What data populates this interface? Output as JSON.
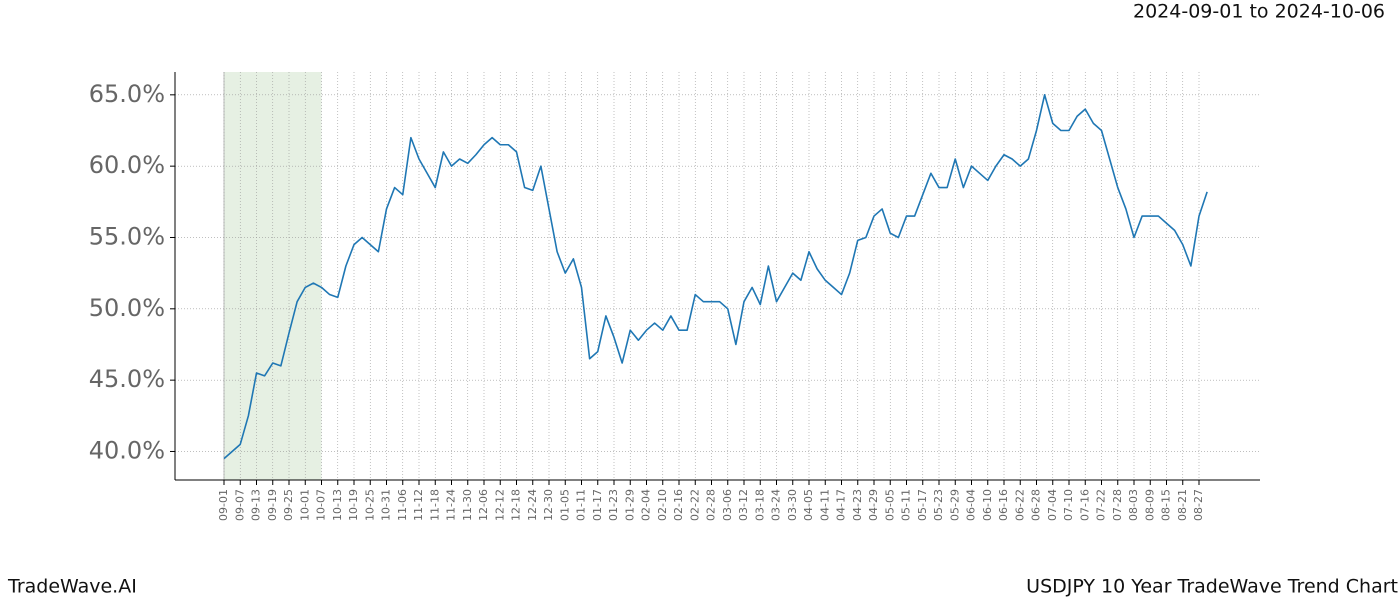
{
  "chart_data": {
    "type": "line",
    "date_range": "2024-09-01 to 2024-10-06",
    "brand": "TradeWave.AI",
    "title": "USDJPY 10 Year TradeWave Trend Chart",
    "x": [
      "09-01",
      "09-04",
      "09-07",
      "09-10",
      "09-13",
      "09-16",
      "09-19",
      "09-22",
      "09-25",
      "09-28",
      "10-01",
      "10-04",
      "10-07",
      "10-10",
      "10-13",
      "10-16",
      "10-19",
      "10-22",
      "10-25",
      "10-28",
      "10-31",
      "11-03",
      "11-06",
      "11-09",
      "11-12",
      "11-15",
      "11-18",
      "11-21",
      "11-24",
      "11-27",
      "11-30",
      "12-03",
      "12-06",
      "12-09",
      "12-12",
      "12-15",
      "12-18",
      "12-21",
      "12-24",
      "12-27",
      "12-30",
      "01-02",
      "01-05",
      "01-08",
      "01-11",
      "01-14",
      "01-17",
      "01-20",
      "01-23",
      "01-26",
      "01-29",
      "02-01",
      "02-04",
      "02-07",
      "02-10",
      "02-13",
      "02-16",
      "02-19",
      "02-22",
      "02-25",
      "02-28",
      "03-03",
      "03-06",
      "03-09",
      "03-12",
      "03-15",
      "03-18",
      "03-21",
      "03-24",
      "03-27",
      "03-30",
      "04-02",
      "04-05",
      "04-08",
      "04-11",
      "04-14",
      "04-17",
      "04-20",
      "04-23",
      "04-26",
      "04-29",
      "05-02",
      "05-05",
      "05-08",
      "05-11",
      "05-14",
      "05-17",
      "05-20",
      "05-23",
      "05-26",
      "05-29",
      "06-01",
      "06-04",
      "06-07",
      "06-10",
      "06-13",
      "06-16",
      "06-19",
      "06-22",
      "06-25",
      "06-28",
      "07-01",
      "07-04",
      "07-07",
      "07-10",
      "07-13",
      "07-16",
      "07-19",
      "07-22",
      "07-25",
      "07-28",
      "07-31",
      "08-03",
      "08-06",
      "08-09",
      "08-12",
      "08-15",
      "08-18",
      "08-21",
      "08-24",
      "08-27",
      "08-30"
    ],
    "values": [
      39.5,
      40.0,
      40.5,
      42.5,
      45.5,
      45.3,
      46.2,
      46.0,
      48.3,
      50.5,
      51.5,
      51.8,
      51.5,
      51.0,
      50.8,
      53.0,
      54.5,
      55.0,
      54.5,
      54.0,
      57.0,
      58.5,
      58.0,
      62.0,
      60.5,
      59.5,
      58.5,
      61.0,
      60.0,
      60.5,
      60.2,
      60.8,
      61.5,
      62.0,
      61.5,
      61.5,
      61.0,
      58.5,
      58.3,
      60.0,
      57.0,
      54.0,
      52.5,
      53.5,
      51.5,
      46.5,
      47.0,
      49.5,
      48.0,
      46.2,
      48.5,
      47.8,
      48.5,
      49.0,
      48.5,
      49.5,
      48.5,
      48.5,
      51.0,
      50.5,
      50.5,
      50.5,
      50.0,
      47.5,
      50.5,
      51.5,
      50.3,
      53.0,
      50.5,
      51.5,
      52.5,
      52.0,
      54.0,
      52.8,
      52.0,
      51.5,
      51.0,
      52.5,
      54.8,
      55.0,
      56.5,
      57.0,
      55.3,
      55.0,
      56.5,
      56.5,
      58.0,
      59.5,
      58.5,
      58.5,
      60.5,
      58.5,
      60.0,
      59.5,
      59.0,
      60.0,
      60.8,
      60.5,
      60.0,
      60.5,
      62.5,
      65.0,
      63.0,
      62.5,
      62.5,
      63.5,
      64.0,
      63.0,
      62.5,
      60.5,
      58.5,
      57.0,
      55.0,
      56.5,
      56.5,
      56.5,
      56.0,
      55.5,
      54.5,
      53.0,
      56.5,
      58.2
    ],
    "color": "#1f77b4",
    "shaded_range": [
      "09-01",
      "10-07"
    ],
    "shaded_color": "#e6f0e3",
    "xticks": [
      "09-01",
      "09-07",
      "09-13",
      "09-19",
      "09-25",
      "10-01",
      "10-07",
      "10-13",
      "10-19",
      "10-25",
      "10-31",
      "11-06",
      "11-12",
      "11-18",
      "11-24",
      "11-30",
      "12-06",
      "12-12",
      "12-18",
      "12-24",
      "12-30",
      "01-05",
      "01-11",
      "01-17",
      "01-23",
      "01-29",
      "02-04",
      "02-10",
      "02-16",
      "02-22",
      "02-28",
      "03-06",
      "03-12",
      "03-18",
      "03-24",
      "03-30",
      "04-05",
      "04-11",
      "04-17",
      "04-23",
      "04-29",
      "05-05",
      "05-11",
      "05-17",
      "05-23",
      "05-29",
      "06-04",
      "06-10",
      "06-16",
      "06-22",
      "06-28",
      "07-04",
      "07-10",
      "07-16",
      "07-22",
      "07-28",
      "08-03",
      "08-09",
      "08-15",
      "08-21",
      "08-27"
    ],
    "ylim": [
      38.0,
      66.6
    ],
    "yticks": [
      {
        "value": 40,
        "label": "40.0%"
      },
      {
        "value": 45,
        "label": "45.0%"
      },
      {
        "value": 50,
        "label": "50.0%"
      },
      {
        "value": 55,
        "label": "55.0%"
      },
      {
        "value": 60,
        "label": "60.0%"
      },
      {
        "value": 65,
        "label": "65.0%"
      }
    ],
    "grid": true
  }
}
